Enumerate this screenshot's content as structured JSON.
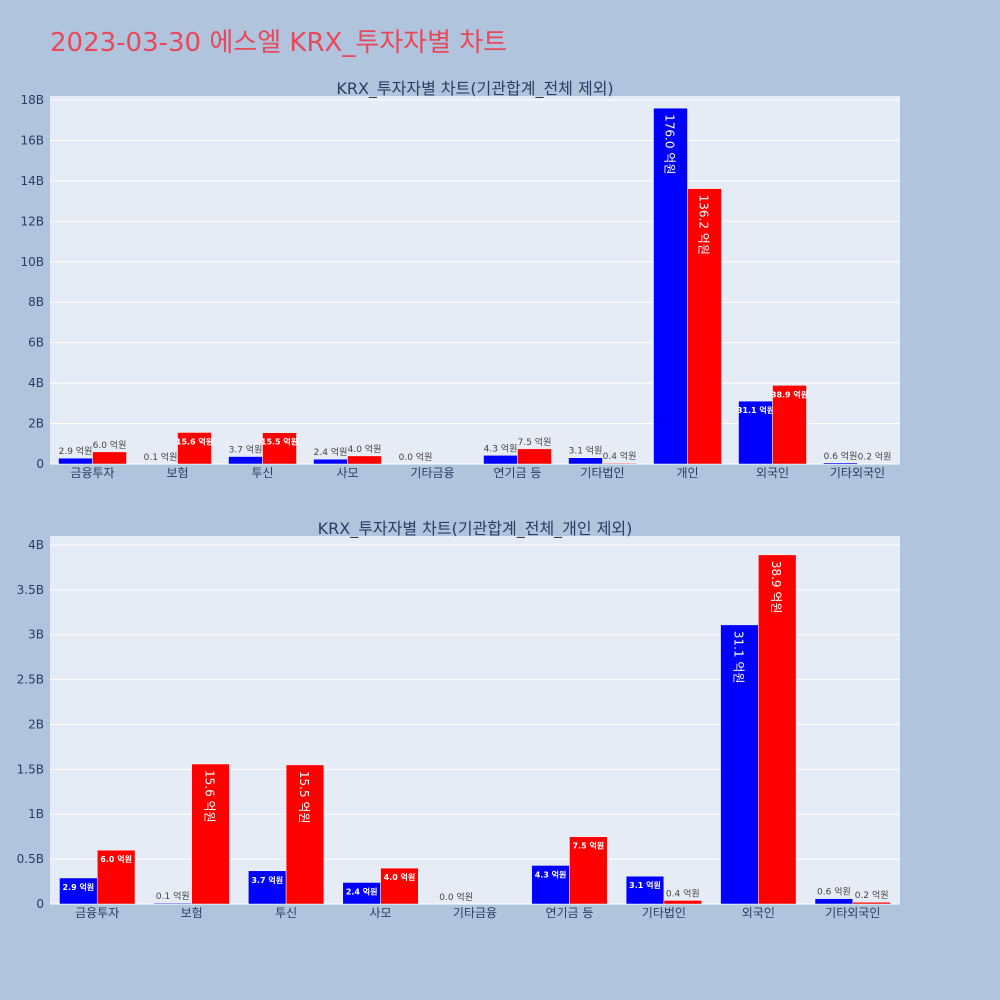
{
  "page": {
    "title": "2023-03-30 에스엘 KRX_투자자별 차트"
  },
  "colors": {
    "buy": "#0000ff",
    "sell": "#ff0000",
    "plot_bg": "#e5ecf6",
    "page_bg": "#b0c4de",
    "title": "#e8495a"
  },
  "chart_data": [
    {
      "type": "bar",
      "title": "KRX_투자자별 차트(기관합계_전체 제외)",
      "categories": [
        "금융투자",
        "보험",
        "투신",
        "사모",
        "기타금융",
        "연기금 등",
        "기타법인",
        "개인",
        "외국인",
        "기타외국인"
      ],
      "ylim": [
        0,
        18.2
      ],
      "y_ticks": [
        0,
        2,
        4,
        6,
        8,
        10,
        12,
        14,
        16,
        18
      ],
      "y_tick_labels": [
        "0",
        "2B",
        "4B",
        "6B",
        "8B",
        "10B",
        "12B",
        "14B",
        "16B",
        "18B"
      ],
      "grid": true,
      "series": [
        {
          "color": "buy",
          "values": [
            0.29,
            0.01,
            0.37,
            0.24,
            0.0,
            0.43,
            0.31,
            17.6,
            3.11,
            0.06
          ],
          "labels": [
            "2.9 억원",
            "0.1 억원",
            "3.7 억원",
            "2.4 억원",
            "0.0 억원",
            "4.3 억원",
            "3.1 억원",
            "176.0 억원",
            "31.1 억원",
            "0.6 억원"
          ]
        },
        {
          "color": "sell",
          "values": [
            0.6,
            1.56,
            1.55,
            0.4,
            0.0,
            0.75,
            0.04,
            13.62,
            3.89,
            0.02
          ],
          "labels": [
            "6.0 억원",
            "15.6 억원",
            "15.5 억원",
            "4.0 억원",
            "",
            "7.5 억원",
            "0.4 억원",
            "136.2 억원",
            "38.9 억원",
            "0.2 억원"
          ]
        }
      ]
    },
    {
      "type": "bar",
      "title": "KRX_투자자별 차트(기관합계_전체_개인 제외)",
      "categories": [
        "금융투자",
        "보험",
        "투신",
        "사모",
        "기타금융",
        "연기금 등",
        "기타법인",
        "외국인",
        "기타외국인"
      ],
      "ylim": [
        0,
        4.1
      ],
      "y_ticks": [
        0,
        0.5,
        1,
        1.5,
        2,
        2.5,
        3,
        3.5,
        4
      ],
      "y_tick_labels": [
        "0",
        "0.5B",
        "1B",
        "1.5B",
        "2B",
        "2.5B",
        "3B",
        "3.5B",
        "4B"
      ],
      "grid": true,
      "series": [
        {
          "color": "buy",
          "values": [
            0.29,
            0.01,
            0.37,
            0.24,
            0.0,
            0.43,
            0.31,
            3.11,
            0.06
          ],
          "labels": [
            "2.9 억원",
            "0.1 억원",
            "3.7 억원",
            "2.4 억원",
            "0.0 억원",
            "4.3 억원",
            "3.1 억원",
            "31.1 억원",
            "0.6 억원"
          ]
        },
        {
          "color": "sell",
          "values": [
            0.6,
            1.56,
            1.55,
            0.4,
            0.0,
            0.75,
            0.04,
            3.89,
            0.02
          ],
          "labels": [
            "6.0 억원",
            "15.6 억원",
            "15.5 억원",
            "4.0 억원",
            "",
            "7.5 억원",
            "0.4 억원",
            "38.9 억원",
            "0.2 억원"
          ]
        }
      ]
    }
  ]
}
